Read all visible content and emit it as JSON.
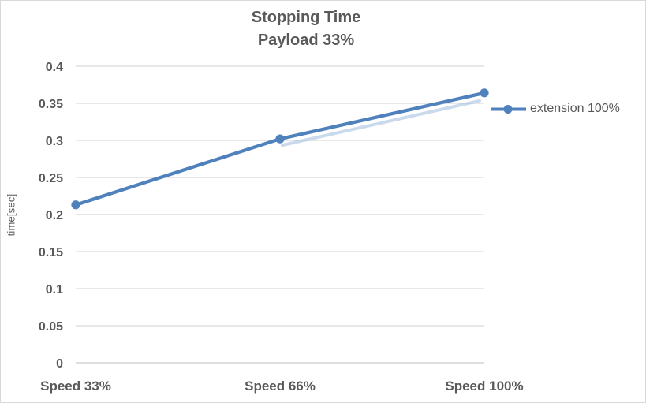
{
  "chart": {
    "title_line1": "Stopping Time",
    "title_line2": "Payload 33%",
    "y_axis_title": "time[sec]",
    "legend_label": "extension 100%"
  },
  "chart_data": {
    "type": "line",
    "title": "Stopping Time",
    "subtitle": "Payload 33%",
    "categories": [
      "Speed 33%",
      "Speed 66%",
      "Speed 100%"
    ],
    "series": [
      {
        "name": "extension 100%",
        "values": [
          0.213,
          0.302,
          0.364
        ]
      }
    ],
    "xlabel": "",
    "ylabel": "time[sec]",
    "ylim": [
      0,
      0.4
    ],
    "ytick_step": 0.05,
    "yticks": [
      "0",
      "0.05",
      "0.1",
      "0.15",
      "0.2",
      "0.25",
      "0.3",
      "0.35",
      "0.4"
    ],
    "grid": true,
    "legend_position": "right",
    "colors": {
      "series": "#4f81bd",
      "series_shadow": "#9dbce0",
      "gridline": "#d9d9d9",
      "axis_line": "#c9c9c9",
      "text": "#595959",
      "border": "#d9d9d9",
      "background": "#ffffff"
    }
  }
}
